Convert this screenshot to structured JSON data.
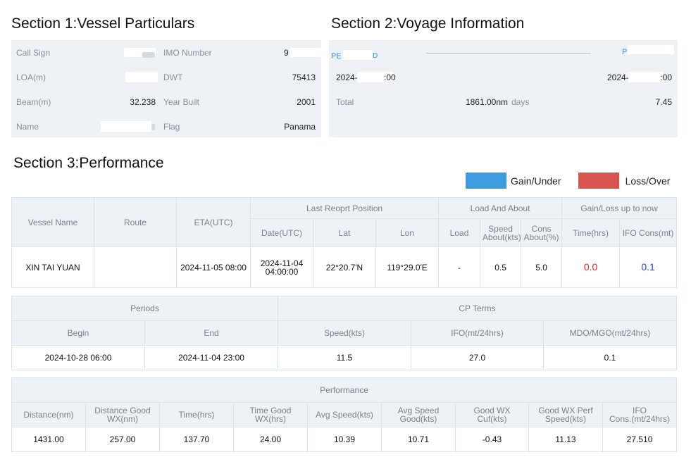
{
  "section1": {
    "title": "Section 1:Vessel Particulars",
    "rows": [
      {
        "label_left": "Call Sign",
        "label_right": "IMO Number",
        "value_right": "9"
      },
      {
        "label_left": "LOA(m)",
        "label_right": "DWT",
        "value_right": "75413"
      },
      {
        "label_left": "Beam(m)",
        "value_left": "32.238",
        "label_right": "Year Built",
        "value_right": "2001"
      },
      {
        "label_left": "Name",
        "label_right": "Flag",
        "value_right": "Panama"
      }
    ]
  },
  "section2": {
    "title": "Section 2:Voyage Information",
    "from_port": "PE",
    "from_port_tail": "D",
    "to_port": "P",
    "depart_prefix": "2024-",
    "depart_suffix": ":00",
    "arrive_prefix": "2024-",
    "arrive_suffix": ":00",
    "total_label": "Total",
    "total_distance": "1861.00nm",
    "days_label": "days",
    "days_value": "7.45"
  },
  "section3": {
    "title": "Section 3:Performance",
    "legend": [
      {
        "label": "Gain/Under",
        "color": "#3d9be0"
      },
      {
        "label": "Loss/Over",
        "color": "#d9534f"
      }
    ],
    "table1": {
      "headers": {
        "vessel_name": "Vessel Name",
        "route": "Route",
        "eta": "ETA(UTC)",
        "last_position": "Last Reoprt Position",
        "load_about": "Load And About",
        "gain_loss": "Gain/Loss up to now",
        "date": "Date(UTC)",
        "lat": "Lat",
        "lon": "Lon",
        "load": "Load",
        "speed_about_1": "Speed",
        "speed_about_2": "About(kts)",
        "cons_about_1": "Cons",
        "cons_about_2": "About(%)",
        "time": "Time(hrs)",
        "ifo": "IFO Cons(mt)"
      },
      "row": {
        "vessel_name": "XIN TAI YUAN",
        "route": "",
        "eta": "2024-11-05 08:00",
        "date_1": "2024-11-04",
        "date_2": "04:00:00",
        "lat": "22°20.7'N",
        "lon": "119°29.0'E",
        "load": "-",
        "speed_about": "0.5",
        "cons_about": "5.0",
        "time": "0.0",
        "ifo": "0.1"
      }
    },
    "table2": {
      "headers": {
        "periods": "Periods",
        "cp_terms": "CP Terms",
        "begin": "Begin",
        "end": "End",
        "speed": "Speed(kts)",
        "ifo": "IFO(mt/24hrs)",
        "mdo": "MDO/MGO(mt/24hrs)"
      },
      "row": {
        "begin": "2024-10-28 06:00",
        "end": "2024-11-04 23:00",
        "speed": "11.5",
        "ifo": "27.0",
        "mdo": "0.1"
      }
    },
    "table3": {
      "title": "Performance",
      "headers": [
        [
          "Distance(nm)"
        ],
        [
          "Distance Good",
          "WX(nm)"
        ],
        [
          "Time(hrs)"
        ],
        [
          "Time Good",
          "WX(hrs)"
        ],
        [
          "Avg Speed(kts)"
        ],
        [
          "Avg Speed",
          "Good(kts)"
        ],
        [
          "Good WX Cuf(kts)"
        ],
        [
          "Good WX Perf",
          "Speed(kts)"
        ],
        [
          "IFO",
          "Cons.(mt/24hrs)"
        ]
      ],
      "values": [
        "1431.00",
        "257.00",
        "137.70",
        "24.00",
        "10.39",
        "10.71",
        "-0.43",
        "11.13",
        "27.510"
      ]
    }
  }
}
